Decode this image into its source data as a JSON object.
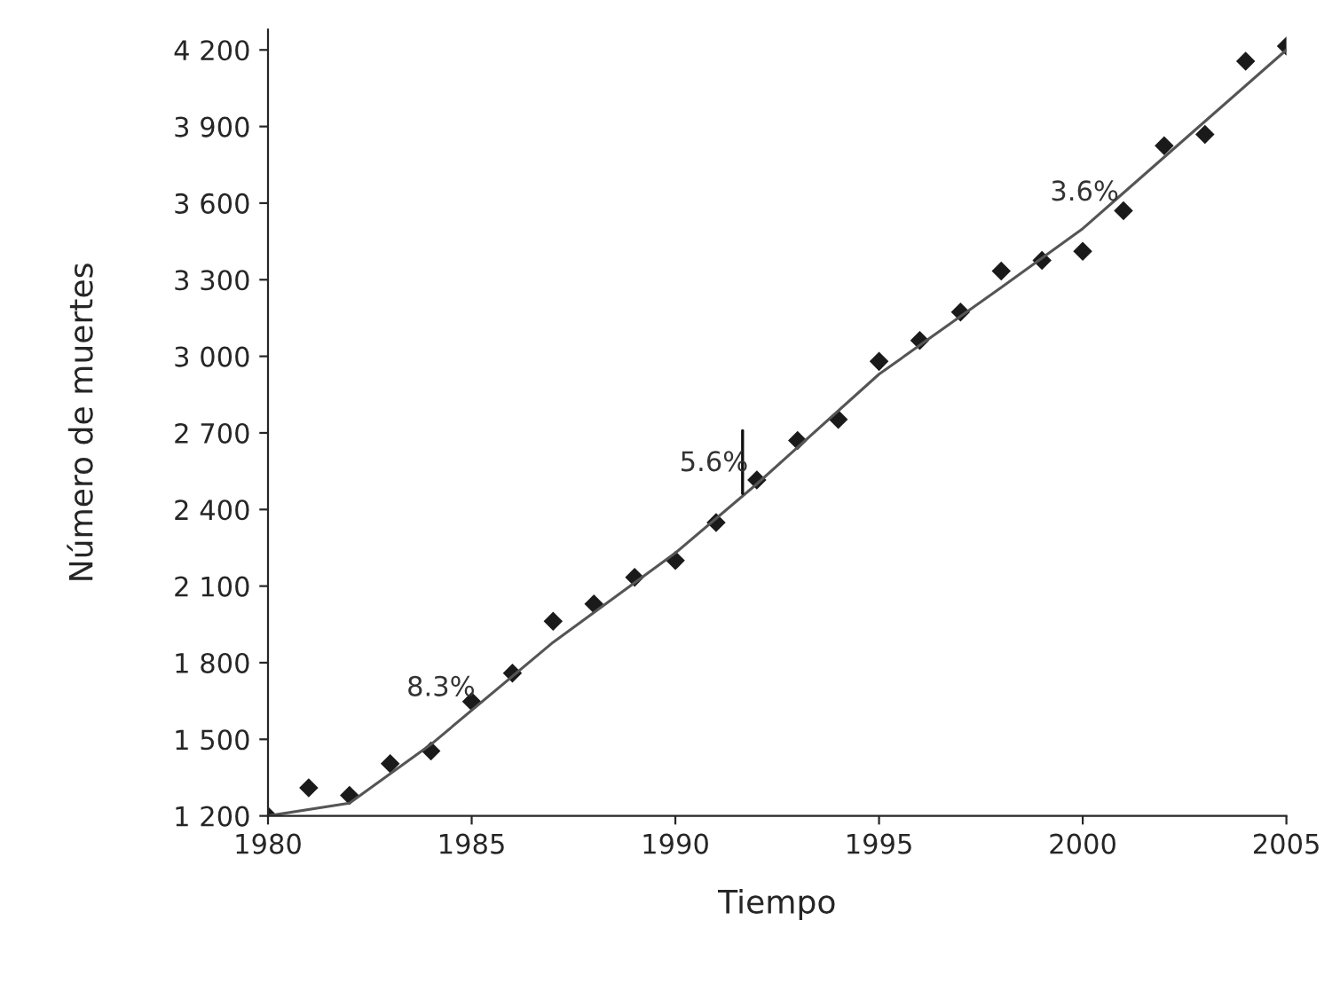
{
  "chart_data": {
    "type": "scatter",
    "xlabel": "Tiempo",
    "ylabel": "Número de muertes",
    "x": [
      1980,
      1981,
      1982,
      1983,
      1984,
      1985,
      1986,
      1987,
      1988,
      1989,
      1990,
      1991,
      1992,
      1993,
      1994,
      1995,
      1996,
      1997,
      1998,
      1999,
      2000,
      2001,
      2002,
      2003,
      2004,
      2005
    ],
    "series": [
      {
        "color": "#1a1a1a",
        "marker": "diamond",
        "values": [
          1200,
          1310,
          1280,
          1405,
          1454,
          1648,
          1759,
          1962,
          2030,
          2134,
          2200,
          2349,
          2516,
          2670,
          2753,
          2980,
          3062,
          3173,
          3334,
          3376,
          3411,
          3570,
          3825,
          3869,
          4156,
          4215
        ]
      },
      {
        "type": "line",
        "color": "#555555",
        "line_style": "solid",
        "marker": "none",
        "x": [
          1980,
          1982,
          1984,
          1987,
          1990,
          1992,
          1995,
          1998,
          2000,
          2005
        ],
        "values": [
          1200,
          1250,
          1480,
          1880,
          2230,
          2500,
          2930,
          3270,
          3500,
          4200
        ]
      }
    ],
    "annotations": [
      "8.3%",
      "5.6%",
      "3.6%"
    ],
    "xlim": [
      1980,
      2005
    ],
    "ylim": [
      1200,
      4280
    ],
    "xticks": [
      1980,
      1985,
      1990,
      1995,
      2000,
      2005
    ],
    "yticks": [
      {
        "value": 1200,
        "label": "1 200"
      },
      {
        "value": 1500,
        "label": "1 500"
      },
      {
        "value": 1800,
        "label": "1 800"
      },
      {
        "value": 2100,
        "label": "2 100"
      },
      {
        "value": 2400,
        "label": "2 400"
      },
      {
        "value": 2700,
        "label": "2 700"
      },
      {
        "value": 3000,
        "label": "3 000"
      },
      {
        "value": 3300,
        "label": "3 300"
      },
      {
        "value": 3600,
        "label": "3 600"
      },
      {
        "value": 3900,
        "label": "3 900"
      },
      {
        "value": 4200,
        "label": "4 200"
      }
    ],
    "grid": false,
    "legend": false
  }
}
